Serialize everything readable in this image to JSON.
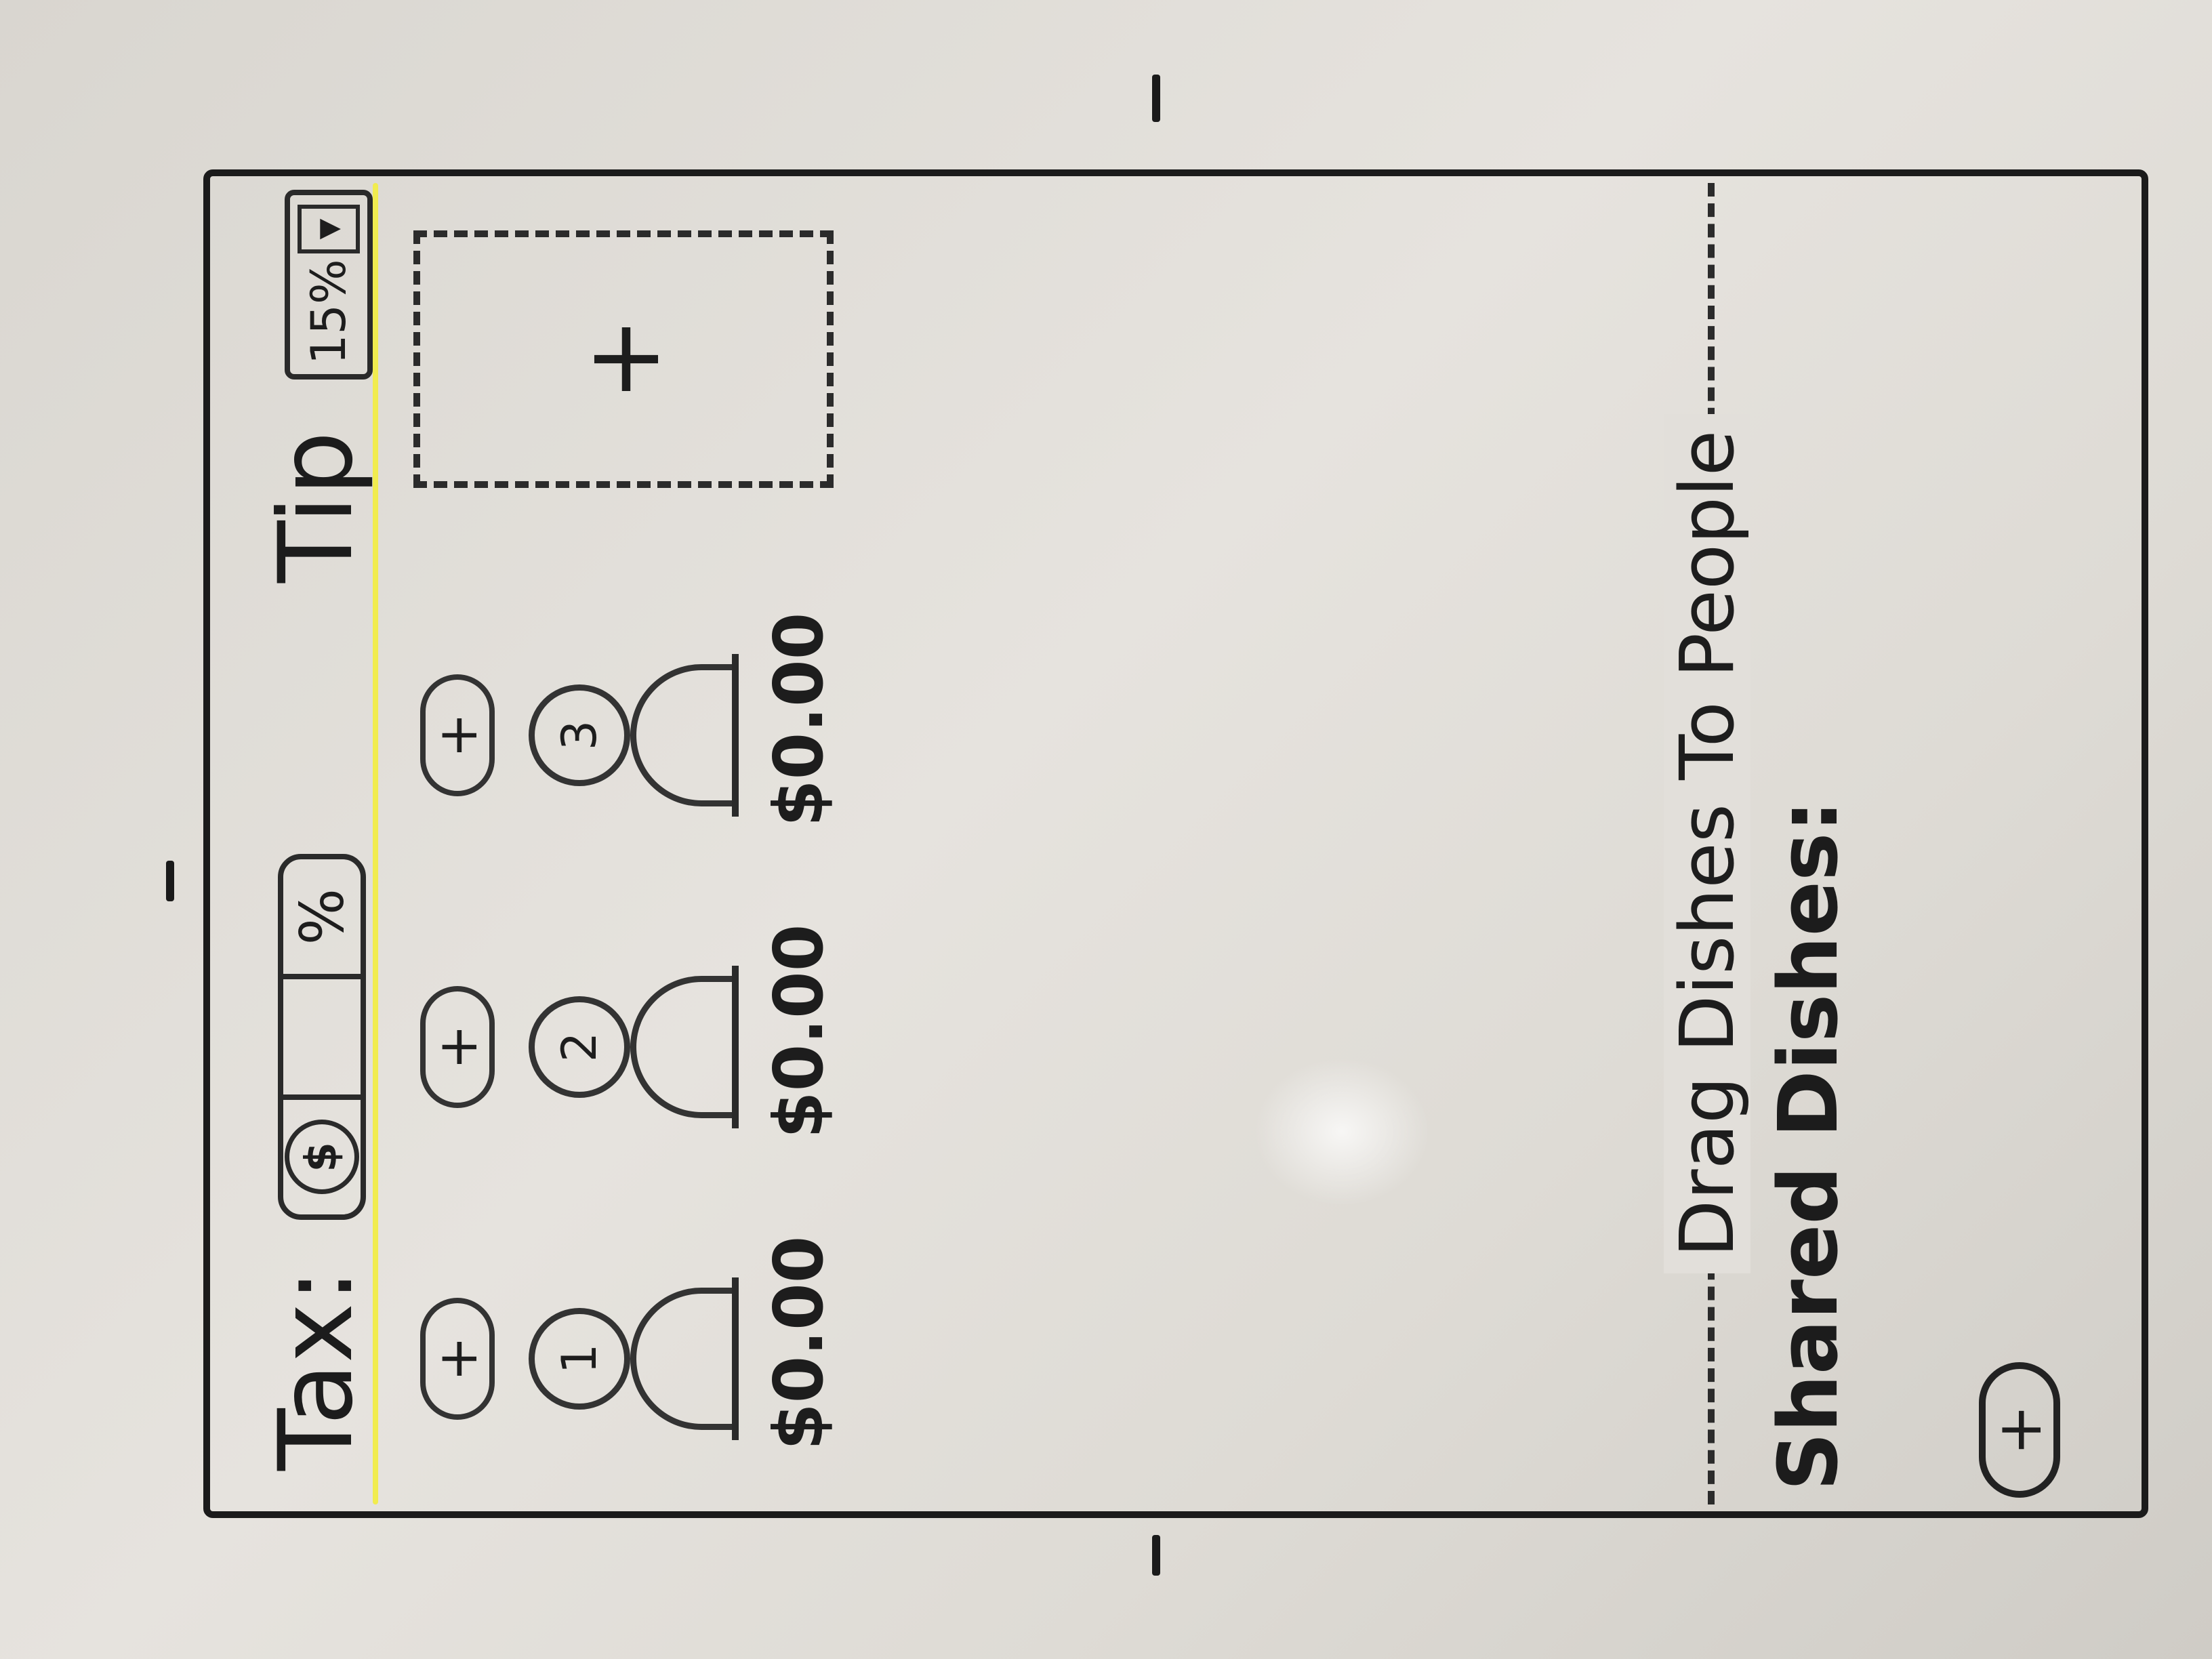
{
  "header": {
    "tax_label": "Tax:",
    "tax_dollar": "$",
    "tax_percent": "%",
    "tip_label": "Tip",
    "tip_value": "15%"
  },
  "people": [
    {
      "number": "1",
      "add_label": "+",
      "total": "$0.00"
    },
    {
      "number": "2",
      "add_label": "+",
      "total": "$0.00"
    },
    {
      "number": "3",
      "add_label": "+",
      "total": "$0.00"
    }
  ],
  "add_person_label": "+",
  "drop_zone_label": "Drag Dishes To People",
  "shared": {
    "label": "Shared Dishes:",
    "add_label": "+"
  },
  "colors": {
    "header_underline": "#f1ec4f",
    "ink": "#1d1d1d"
  }
}
